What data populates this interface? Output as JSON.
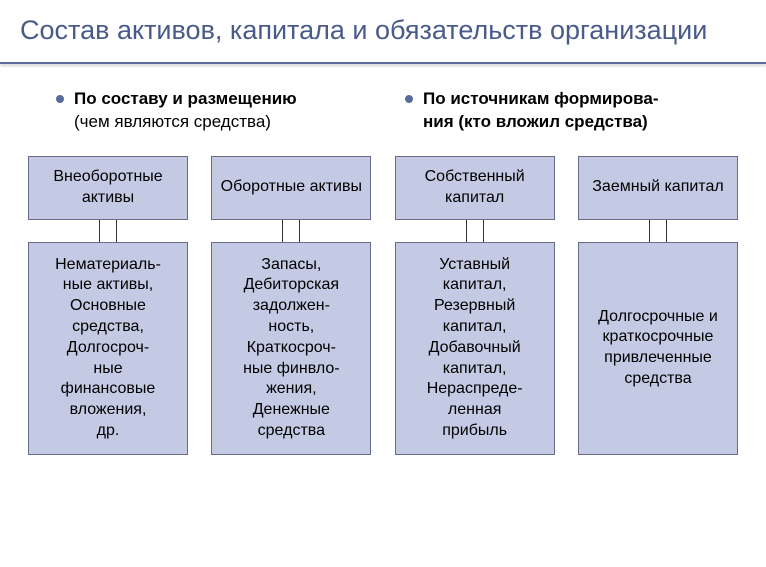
{
  "title": "Состав активов, капитала и обязательств организации",
  "bullets": {
    "left": {
      "bold": "По составу и размещению",
      "sub": "(чем являются средства)"
    },
    "right": {
      "bold": "По источникам формирова-",
      "sub": "ния (кто вложил средства)"
    }
  },
  "columns": [
    {
      "top": "Внеоборотные активы",
      "bottom": "Нематериаль-\nные активы,\nОсновные\nсредства,\nДолгосроч-\nные\nфинансовые\nвложения,\nдр."
    },
    {
      "top": "Оборотные активы",
      "bottom": "Запасы,\nДебиторская\nзадолжен-\nность,\nКраткосроч-\nные финвло-\nжения,\nДенежные\nсредства"
    },
    {
      "top": "Собственный капитал",
      "bottom": "Уставный\nкапитал,\nРезервный\nкапитал,\nДобавочный\nкапитал,\nНераспреде-\nленная\nприбыль"
    },
    {
      "top": "Заемный капитал",
      "bottom": "Долгосрочные и\nкраткосрочные\nпривлеченные\nсредства"
    }
  ],
  "style": {
    "box_fill": "#c5cae4",
    "box_border": "#6a6a8a",
    "title_color": "#4a5a8a",
    "underline_color": "#5a6a9a",
    "bullet_dot_color": "#5a6a9a",
    "connector_color": "#333333",
    "background": "#ffffff",
    "title_fontsize": 27,
    "bullet_fontsize": 17,
    "box_fontsize": 16
  }
}
